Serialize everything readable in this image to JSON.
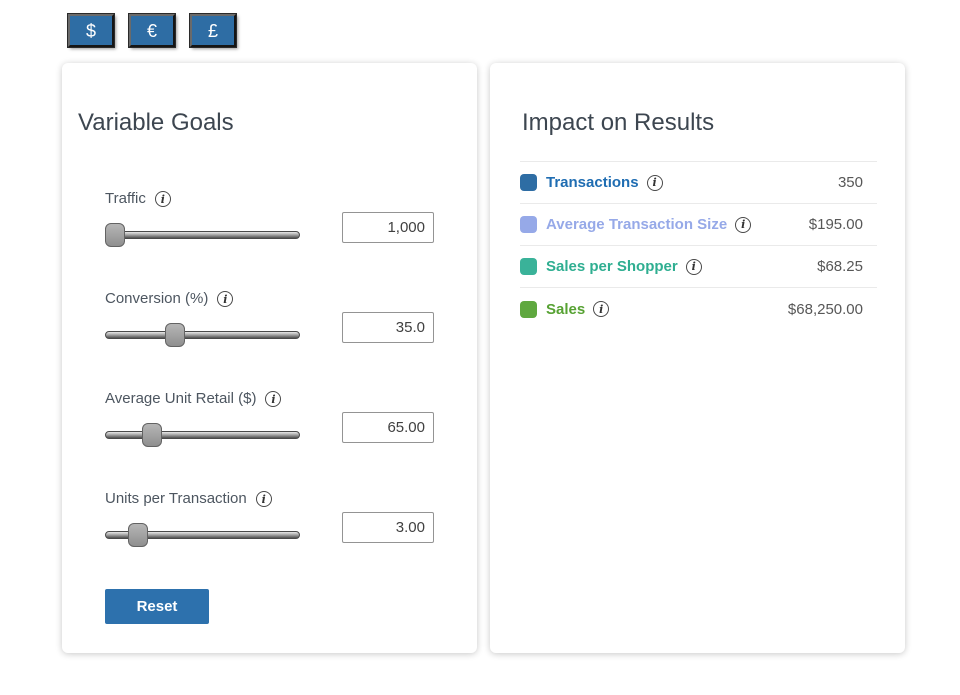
{
  "currency_bar": {
    "buttons": [
      {
        "symbol": "$"
      },
      {
        "symbol": "€"
      },
      {
        "symbol": "£"
      }
    ]
  },
  "variable_goals": {
    "title": "Variable Goals",
    "controls": [
      {
        "label": "Traffic",
        "value": "1,000",
        "thumb_percent": 5
      },
      {
        "label": "Conversion (%)",
        "value": "35.0",
        "thumb_percent": 36
      },
      {
        "label": "Average Unit Retail ($)",
        "value": "65.00",
        "thumb_percent": 24
      },
      {
        "label": "Units per Transaction",
        "value": "3.00",
        "thumb_percent": 17
      }
    ],
    "reset_label": "Reset"
  },
  "impact_on_results": {
    "title": "Impact on Results",
    "rows": [
      {
        "label": "Transactions",
        "value": "350",
        "swatch_color": "#2e6da4",
        "label_color": "#1f6db2"
      },
      {
        "label": "Average Transaction Size",
        "value": "$195.00",
        "swatch_color": "#96a9e8",
        "label_color": "#96a9e8"
      },
      {
        "label": "Sales per Shopper",
        "value": "$68.25",
        "swatch_color": "#3ab299",
        "label_color": "#2fae91"
      },
      {
        "label": "Sales",
        "value": "$68,250.00",
        "swatch_color": "#5fa83f",
        "label_color": "#57a233"
      }
    ]
  },
  "icons": {
    "info_glyph": "i"
  },
  "colors": {
    "accent_blue": "#2e6da4",
    "reset_blue": "#2d71ad"
  }
}
